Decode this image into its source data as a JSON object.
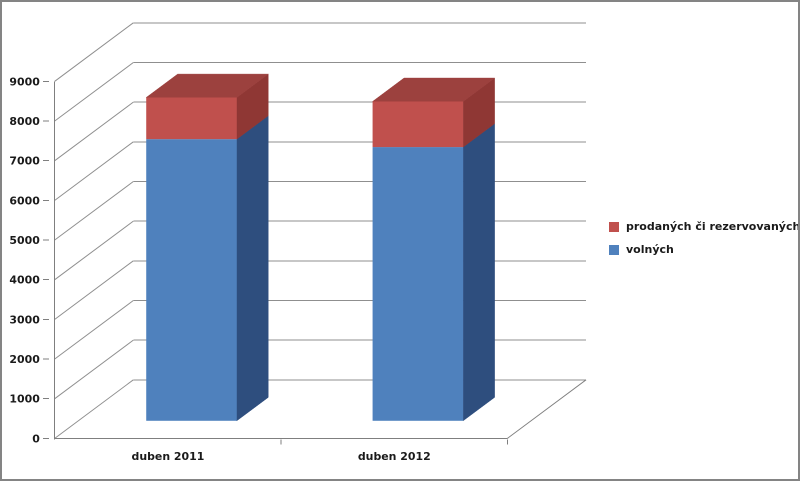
{
  "chart_data": {
    "type": "bar",
    "subtype": "3d-stacked-column",
    "title": "",
    "xlabel": "",
    "ylabel": "",
    "categories": [
      "duben 2011",
      "duben 2012"
    ],
    "series": [
      {
        "name": "volných",
        "color": "#4F81BD",
        "color_side": "#2E4E7E",
        "color_top": "#3A6090",
        "values": [
          7100,
          6900
        ]
      },
      {
        "name": "prodaných či rezervovaných",
        "color": "#C0504D",
        "color_side": "#8F3734",
        "color_top": "#9C413E",
        "values": [
          1050,
          1150
        ]
      }
    ],
    "ylim": [
      0,
      9000
    ],
    "ytick_step": 1000,
    "ytick_labels": [
      "0",
      "1000",
      "2000",
      "3000",
      "4000",
      "5000",
      "6000",
      "7000",
      "8000",
      "9000"
    ],
    "grid": true,
    "legend_position": "right",
    "legend_order_top_to_bottom": [
      "prodaných či rezervovaných",
      "volných"
    ]
  },
  "colors": {
    "grid": "#8F8F8F",
    "axis": "#7F7F7F",
    "text": "#1A1A1A",
    "background": "#FFFFFF",
    "border": "#848484"
  }
}
